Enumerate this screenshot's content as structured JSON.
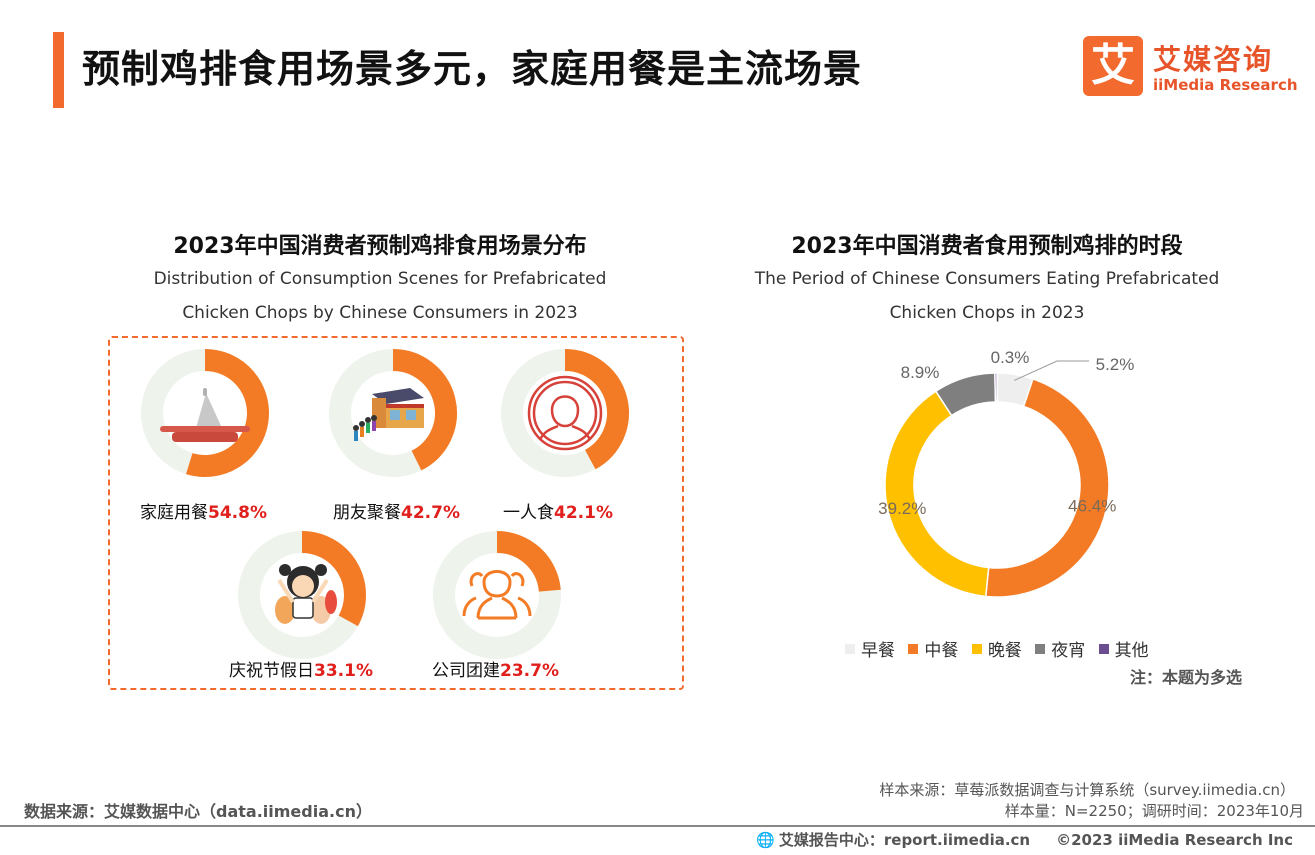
{
  "header": {
    "title": "预制鸡排食用场景多元，家庭用餐是主流场景",
    "logo_mark": "艾",
    "logo_cn": "艾媒咨询",
    "logo_en": "iiMedia Research"
  },
  "left_chart": {
    "title": "2023年中国消费者预制鸡排食用场景分布",
    "subtitle_line1": "Distribution of Consumption Scenes for Prefabricated",
    "subtitle_line2": "Chicken Chops by Chinese Consumers in 2023"
  },
  "right_chart": {
    "title": "2023年中国消费者食用预制鸡排的时段",
    "subtitle_line1": "The Period of Chinese Consumers Eating Prefabricated",
    "subtitle_line2": "Chicken Chops in 2023",
    "note": "注：本题为多选"
  },
  "chart_data": [
    {
      "type": "bar",
      "title": "2023年中国消费者预制鸡排食用场景分布",
      "categories": [
        "家庭用餐",
        "朋友聚餐",
        "一人食",
        "庆祝节假日",
        "公司团建"
      ],
      "values": [
        54.8,
        42.7,
        42.1,
        33.1,
        23.7
      ],
      "value_labels": [
        "54.8%",
        "42.7%",
        "42.1%",
        "33.1%",
        "23.7%"
      ],
      "unit": "%"
    },
    {
      "type": "pie",
      "title": "2023年中国消费者食用预制鸡排的时段",
      "categories": [
        "早餐",
        "中餐",
        "晚餐",
        "夜宵",
        "其他"
      ],
      "values": [
        5.2,
        46.4,
        39.2,
        8.9,
        0.3
      ],
      "value_labels": [
        "5.2%",
        "46.4%",
        "39.2%",
        "8.9%",
        "0.3%"
      ],
      "colors": [
        "#EEEEEE",
        "#F47B25",
        "#FFC000",
        "#7F7F7F",
        "#6B4E8F"
      ],
      "legend_position": "bottom"
    }
  ],
  "colors": {
    "accent": "#F26A2E",
    "ring_bg": "#EEF3EC",
    "ring_fg": "#F47B25",
    "pct_red": "#E0201D"
  },
  "footer": {
    "source": "数据来源：艾媒数据中心（data.iimedia.cn）",
    "sample_source": "样本来源：草莓派数据调查与计算系统（survey.iimedia.cn）",
    "sample_size": "样本量：N=2250；调研时间：2023年10月",
    "report_center": "艾媒报告中心：report.iimedia.cn",
    "copyright": "©2023  iiMedia Research  Inc"
  }
}
